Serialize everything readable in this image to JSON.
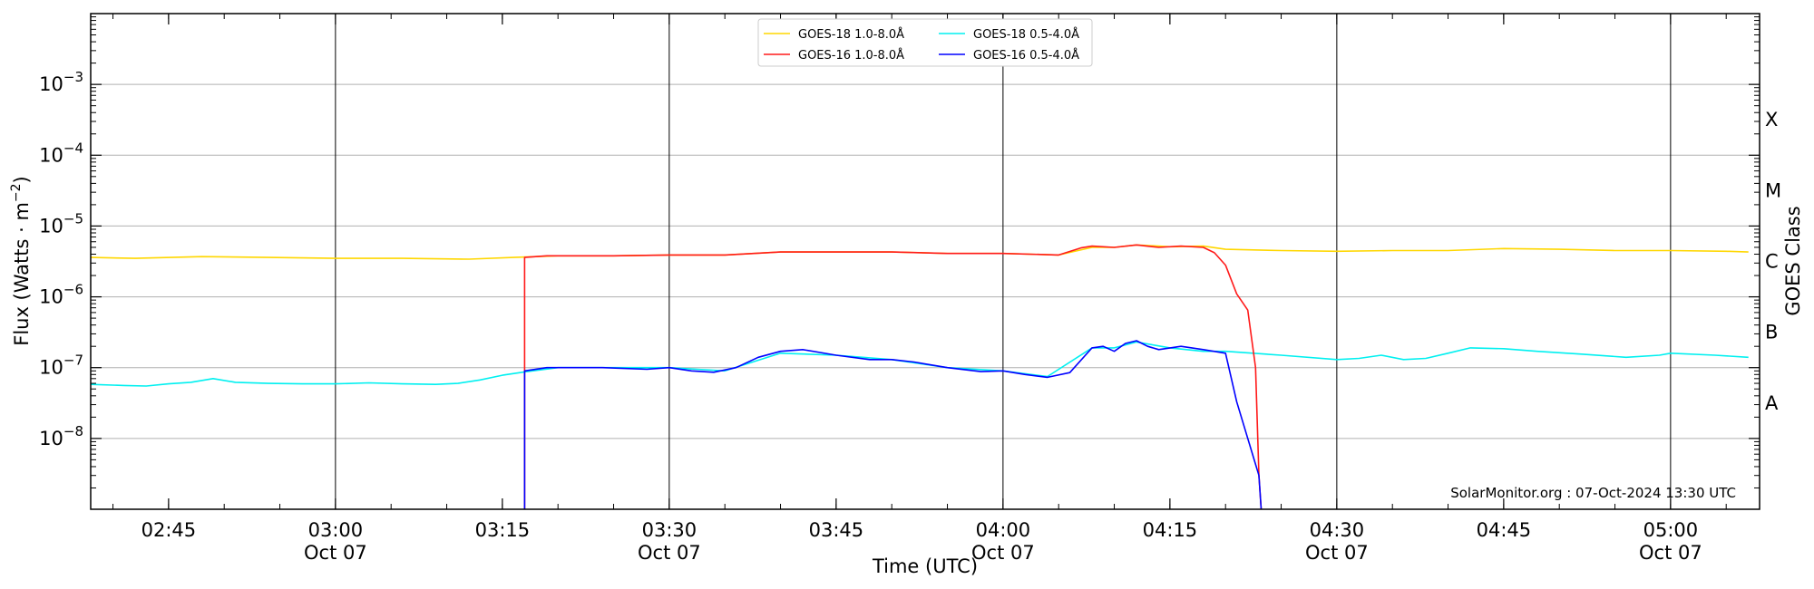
{
  "chart_data": {
    "type": "line",
    "xlabel": "Time (UTC)",
    "ylabel": "Flux (Watts · m",
    "ylabel_exponent": "−2",
    "ylabel_close": ")",
    "right_axis_label": "GOES Class",
    "y_scale": "log",
    "xlim": [
      "02:38",
      "05:08"
    ],
    "ylim": [
      1e-09,
      0.01
    ],
    "grid": "horizontal",
    "legend_position": "top-center",
    "credit": "SolarMonitor.org : 07-Oct-2024 13:30 UTC",
    "x_ticks": [
      {
        "time": "02:45",
        "label": "02:45",
        "date": ""
      },
      {
        "time": "03:00",
        "label": "03:00",
        "date": "Oct 07"
      },
      {
        "time": "03:15",
        "label": "03:15",
        "date": ""
      },
      {
        "time": "03:30",
        "label": "03:30",
        "date": "Oct 07"
      },
      {
        "time": "03:45",
        "label": "03:45",
        "date": ""
      },
      {
        "time": "04:00",
        "label": "04:00",
        "date": "Oct 07"
      },
      {
        "time": "04:15",
        "label": "04:15",
        "date": ""
      },
      {
        "time": "04:30",
        "label": "04:30",
        "date": "Oct 07"
      },
      {
        "time": "04:45",
        "label": "04:45",
        "date": ""
      },
      {
        "time": "05:00",
        "label": "05:00",
        "date": "Oct 07"
      }
    ],
    "vertical_markers": [
      "03:00",
      "03:30",
      "04:00",
      "04:30",
      "05:00"
    ],
    "y_ticks": [
      {
        "value": 1e-08,
        "mantissa": "10",
        "exponent": "−8"
      },
      {
        "value": 1e-07,
        "mantissa": "10",
        "exponent": "−7"
      },
      {
        "value": 1e-06,
        "mantissa": "10",
        "exponent": "−6"
      },
      {
        "value": 1e-05,
        "mantissa": "10",
        "exponent": "−5"
      },
      {
        "value": 0.0001,
        "mantissa": "10",
        "exponent": "−4"
      },
      {
        "value": 0.001,
        "mantissa": "10",
        "exponent": "−3"
      }
    ],
    "goes_classes": [
      {
        "label": "A",
        "value": 3.16e-08
      },
      {
        "label": "B",
        "value": 3.16e-07
      },
      {
        "label": "C",
        "value": 3.16e-06
      },
      {
        "label": "M",
        "value": 3.16e-05
      },
      {
        "label": "X",
        "value": 0.000316
      }
    ],
    "series": [
      {
        "name": "GOES-18 1.0-8.0Å",
        "color": "#ffd700",
        "points": [
          [
            "02:38",
            3.6e-06
          ],
          [
            "02:42",
            3.5e-06
          ],
          [
            "02:48",
            3.7e-06
          ],
          [
            "02:54",
            3.6e-06
          ],
          [
            "03:00",
            3.5e-06
          ],
          [
            "03:06",
            3.5e-06
          ],
          [
            "03:12",
            3.4e-06
          ],
          [
            "03:16",
            3.6e-06
          ],
          [
            "03:20",
            3.8e-06
          ],
          [
            "03:25",
            3.8e-06
          ],
          [
            "03:30",
            3.9e-06
          ],
          [
            "03:35",
            3.9e-06
          ],
          [
            "03:40",
            4.3e-06
          ],
          [
            "03:45",
            4.3e-06
          ],
          [
            "03:50",
            4.3e-06
          ],
          [
            "03:55",
            4.1e-06
          ],
          [
            "04:00",
            4.1e-06
          ],
          [
            "04:05",
            3.9e-06
          ],
          [
            "04:08",
            5e-06
          ],
          [
            "04:10",
            5e-06
          ],
          [
            "04:12",
            5.4e-06
          ],
          [
            "04:15",
            5.1e-06
          ],
          [
            "04:18",
            5.2e-06
          ],
          [
            "04:20",
            4.7e-06
          ],
          [
            "04:25",
            4.5e-06
          ],
          [
            "04:30",
            4.4e-06
          ],
          [
            "04:35",
            4.5e-06
          ],
          [
            "04:40",
            4.5e-06
          ],
          [
            "04:45",
            4.8e-06
          ],
          [
            "04:50",
            4.7e-06
          ],
          [
            "04:55",
            4.5e-06
          ],
          [
            "05:00",
            4.5e-06
          ],
          [
            "05:05",
            4.4e-06
          ],
          [
            "05:07",
            4.3e-06
          ]
        ]
      },
      {
        "name": "GOES-18 0.5-4.0Å",
        "color": "#00f0f0",
        "points": [
          [
            "02:38",
            5.8e-08
          ],
          [
            "02:41",
            5.6e-08
          ],
          [
            "02:43",
            5.5e-08
          ],
          [
            "02:45",
            5.9e-08
          ],
          [
            "02:47",
            6.2e-08
          ],
          [
            "02:49",
            7e-08
          ],
          [
            "02:51",
            6.2e-08
          ],
          [
            "02:54",
            6e-08
          ],
          [
            "02:57",
            5.9e-08
          ],
          [
            "03:00",
            5.9e-08
          ],
          [
            "03:03",
            6.1e-08
          ],
          [
            "03:06",
            5.9e-08
          ],
          [
            "03:09",
            5.8e-08
          ],
          [
            "03:11",
            6e-08
          ],
          [
            "03:13",
            6.7e-08
          ],
          [
            "03:15",
            7.8e-08
          ],
          [
            "03:17",
            8.7e-08
          ],
          [
            "03:20",
            1e-07
          ],
          [
            "03:25",
            1e-07
          ],
          [
            "03:30",
            1e-07
          ],
          [
            "03:35",
            9e-08
          ],
          [
            "03:40",
            1.6e-07
          ],
          [
            "03:45",
            1.5e-07
          ],
          [
            "03:50",
            1.3e-07
          ],
          [
            "03:55",
            1e-07
          ],
          [
            "04:00",
            9e-08
          ],
          [
            "04:04",
            7.5e-08
          ],
          [
            "04:08",
            1.9e-07
          ],
          [
            "04:10",
            1.9e-07
          ],
          [
            "04:12",
            2.3e-07
          ],
          [
            "04:15",
            1.9e-07
          ],
          [
            "04:18",
            1.7e-07
          ],
          [
            "04:20",
            1.7e-07
          ],
          [
            "04:25",
            1.5e-07
          ],
          [
            "04:30",
            1.3e-07
          ],
          [
            "04:32",
            1.35e-07
          ],
          [
            "04:34",
            1.5e-07
          ],
          [
            "04:36",
            1.3e-07
          ],
          [
            "04:38",
            1.35e-07
          ],
          [
            "04:40",
            1.6e-07
          ],
          [
            "04:42",
            1.9e-07
          ],
          [
            "04:45",
            1.85e-07
          ],
          [
            "04:48",
            1.7e-07
          ],
          [
            "04:52",
            1.55e-07
          ],
          [
            "04:56",
            1.4e-07
          ],
          [
            "04:59",
            1.5e-07
          ],
          [
            "05:00",
            1.6e-07
          ],
          [
            "05:04",
            1.5e-07
          ],
          [
            "05:07",
            1.4e-07
          ]
        ]
      },
      {
        "name": "GOES-16 1.0-8.0Å",
        "color": "#ff1a1a",
        "points": [
          [
            "03:17",
            1e-09
          ],
          [
            "03:17",
            3.6e-06
          ],
          [
            "03:19",
            3.8e-06
          ],
          [
            "03:25",
            3.8e-06
          ],
          [
            "03:30",
            3.9e-06
          ],
          [
            "03:35",
            3.9e-06
          ],
          [
            "03:40",
            4.3e-06
          ],
          [
            "03:45",
            4.3e-06
          ],
          [
            "03:50",
            4.3e-06
          ],
          [
            "03:55",
            4.1e-06
          ],
          [
            "04:00",
            4.1e-06
          ],
          [
            "04:05",
            3.9e-06
          ],
          [
            "04:07",
            4.9e-06
          ],
          [
            "04:08",
            5.2e-06
          ],
          [
            "04:10",
            5e-06
          ],
          [
            "04:12",
            5.4e-06
          ],
          [
            "04:14",
            5e-06
          ],
          [
            "04:16",
            5.2e-06
          ],
          [
            "04:18",
            5e-06
          ],
          [
            "04:19",
            4.2e-06
          ],
          [
            "04:20",
            2.8e-06
          ],
          [
            "04:21",
            1.1e-06
          ],
          [
            "04:22",
            6.5e-07
          ],
          [
            "04:22.7",
            1e-07
          ],
          [
            "04:23",
            3e-09
          ],
          [
            "04:23.2",
            1e-09
          ]
        ]
      },
      {
        "name": "GOES-16 0.5-4.0Å",
        "color": "#0000ff",
        "points": [
          [
            "03:17",
            1e-09
          ],
          [
            "03:17",
            9e-08
          ],
          [
            "03:19",
            1e-07
          ],
          [
            "03:24",
            1e-07
          ],
          [
            "03:28",
            9.5e-08
          ],
          [
            "03:30",
            1e-07
          ],
          [
            "03:32",
            9e-08
          ],
          [
            "03:34",
            8.6e-08
          ],
          [
            "03:36",
            1e-07
          ],
          [
            "03:38",
            1.4e-07
          ],
          [
            "03:40",
            1.7e-07
          ],
          [
            "03:42",
            1.8e-07
          ],
          [
            "03:45",
            1.5e-07
          ],
          [
            "03:48",
            1.3e-07
          ],
          [
            "03:50",
            1.3e-07
          ],
          [
            "03:52",
            1.2e-07
          ],
          [
            "03:55",
            1e-07
          ],
          [
            "03:58",
            8.8e-08
          ],
          [
            "04:00",
            9e-08
          ],
          [
            "04:02",
            8e-08
          ],
          [
            "04:04",
            7.3e-08
          ],
          [
            "04:06",
            8.5e-08
          ],
          [
            "04:08",
            1.9e-07
          ],
          [
            "04:09",
            2e-07
          ],
          [
            "04:10",
            1.7e-07
          ],
          [
            "04:11",
            2.2e-07
          ],
          [
            "04:12",
            2.4e-07
          ],
          [
            "04:13",
            2e-07
          ],
          [
            "04:14",
            1.8e-07
          ],
          [
            "04:16",
            2e-07
          ],
          [
            "04:18",
            1.8e-07
          ],
          [
            "04:20",
            1.6e-07
          ],
          [
            "04:21",
            3.3e-08
          ],
          [
            "04:23",
            3e-09
          ],
          [
            "04:23.2",
            1e-09
          ]
        ]
      }
    ]
  }
}
